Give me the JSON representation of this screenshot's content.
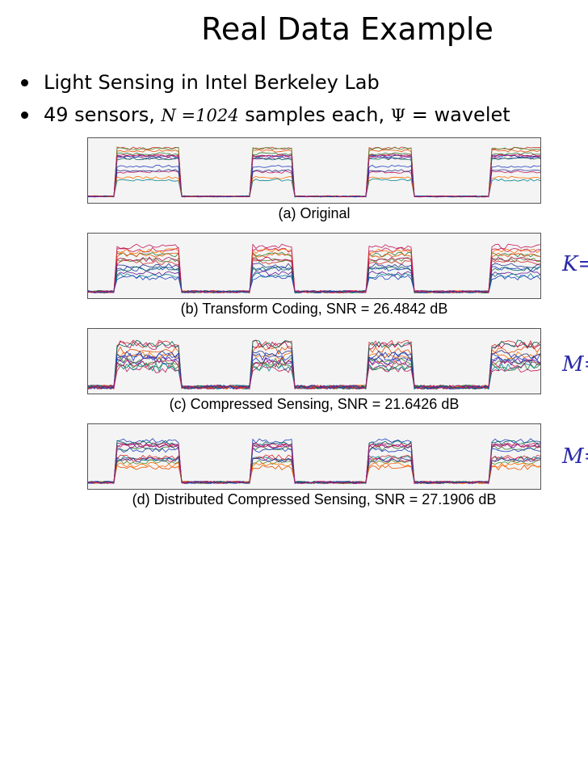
{
  "slide": {
    "title": "Real Data Example",
    "bullets": [
      {
        "text": "Light Sensing in Intel Berkeley Lab"
      },
      {
        "pre": "49 sensors, ",
        "math": "N =1024",
        "mid": " samples each, ",
        "sym": "Ψ",
        "post": " = wavelet"
      }
    ]
  },
  "figure": {
    "panels": [
      {
        "caption": "(a) Original"
      },
      {
        "caption": "(b) Transform Coding, SNR = 26.4842 dB"
      },
      {
        "caption": "(c) Compressed Sensing, SNR = 21.6426 dB"
      },
      {
        "caption": "(d) Distributed Compressed Sensing, SNR = 27.1906 dB"
      }
    ],
    "side_labels": [
      "K=",
      "M=",
      "M="
    ]
  }
}
